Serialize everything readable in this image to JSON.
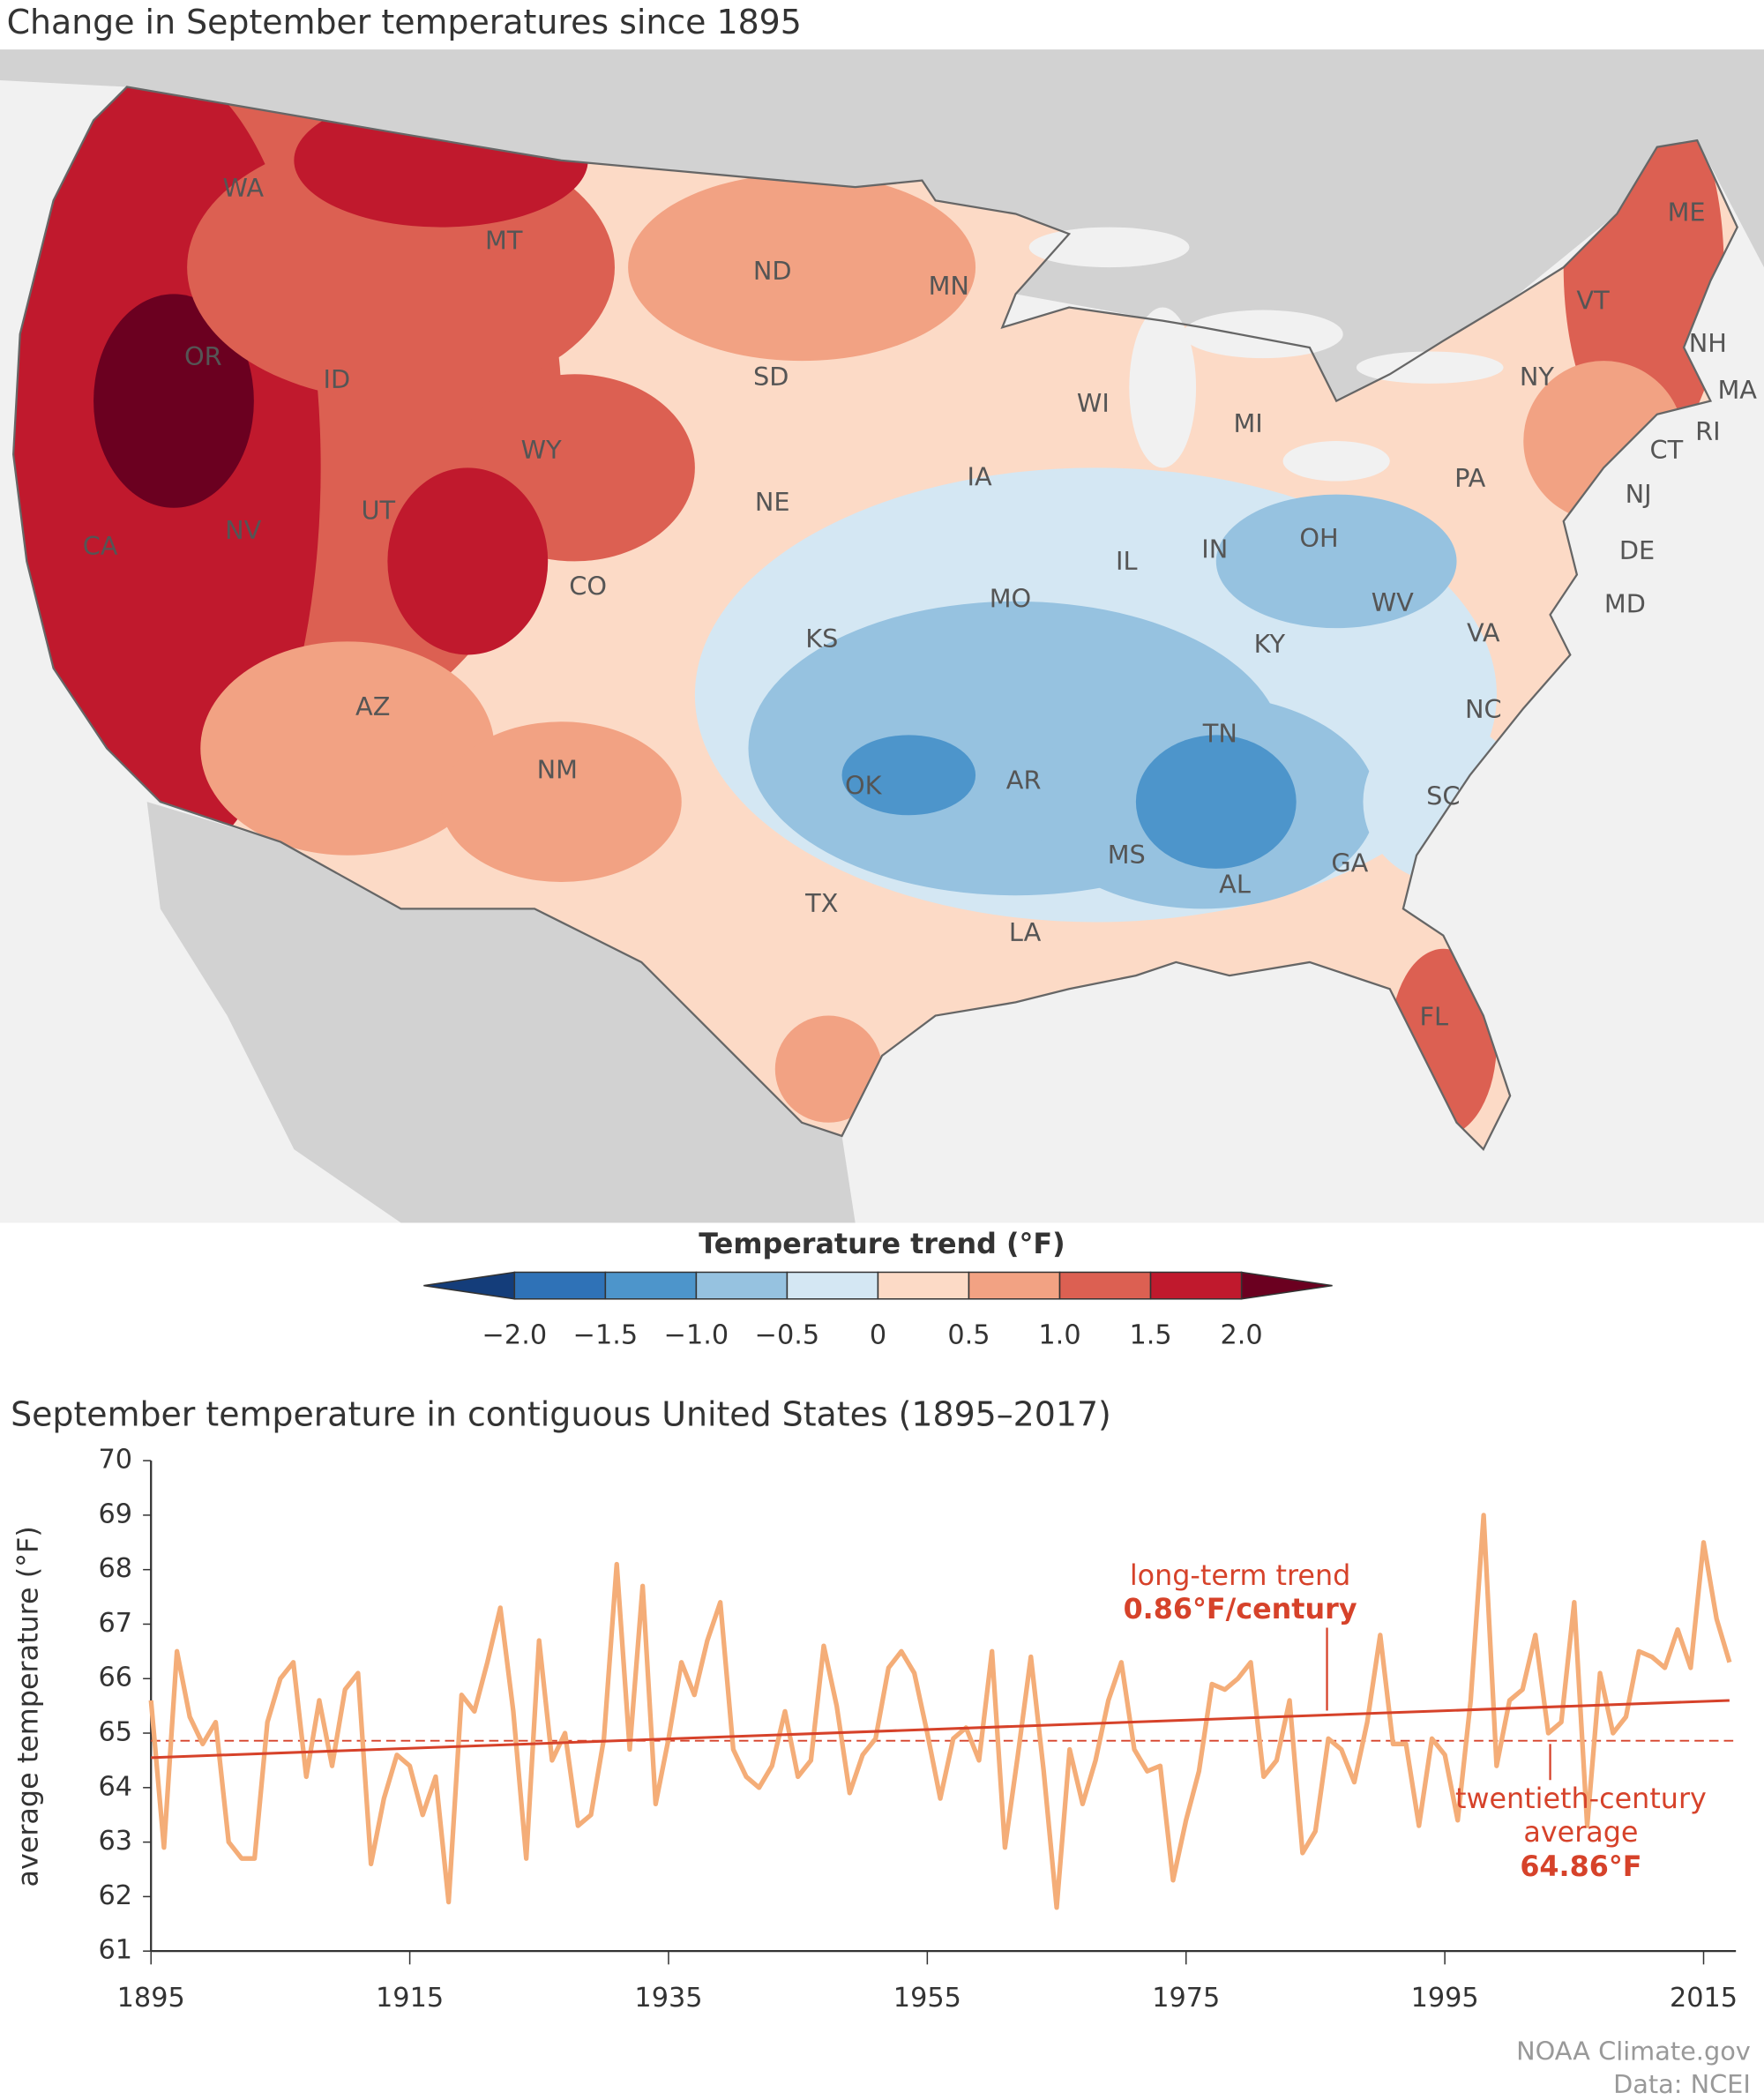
{
  "map": {
    "title": "Change in September temperatures since 1895",
    "state_labels": [
      "WA",
      "MT",
      "ND",
      "MN",
      "ME",
      "VT",
      "NH",
      "OR",
      "ID",
      "SD",
      "WY",
      "WI",
      "MI",
      "NY",
      "MA",
      "RI",
      "CT",
      "NJ",
      "PA",
      "NE",
      "IA",
      "NV",
      "UT",
      "CA",
      "CO",
      "IL",
      "IN",
      "OH",
      "DE",
      "MD",
      "WV",
      "VA",
      "MO",
      "KS",
      "KY",
      "AZ",
      "NM",
      "NC",
      "TN",
      "OK",
      "AR",
      "SC",
      "MS",
      "AL",
      "GA",
      "TX",
      "LA",
      "FL"
    ]
  },
  "colorbar": {
    "title": "Temperature trend (°F)",
    "ticks": [
      {
        "value": -2,
        "label": "−2.0"
      },
      {
        "value": -1.5,
        "label": "−1.5"
      },
      {
        "value": -1,
        "label": "−1.0"
      },
      {
        "value": -0.5,
        "label": "−0.5"
      },
      0,
      0.5,
      {
        "value": 1,
        "label": "1.0"
      },
      1.5,
      {
        "value": 2,
        "label": "2.0"
      }
    ],
    "colors": [
      "#143d7a",
      "#2f72b7",
      "#4d95cb",
      "#96c2e0",
      "#d4e7f3",
      "#fcdac6",
      "#f2a283",
      "#dc6052",
      "#c0192d",
      "#6b0020"
    ]
  },
  "chart_data": {
    "type": "line",
    "title": "September temperature in contiguous United States (1895–2017)",
    "y_label": "average temperature (°F)",
    "x": [
      1895,
      1896,
      1897,
      1898,
      1899,
      1900,
      1901,
      1902,
      1903,
      1904,
      1905,
      1906,
      1907,
      1908,
      1909,
      1910,
      1911,
      1912,
      1913,
      1914,
      1915,
      1916,
      1917,
      1918,
      1919,
      1920,
      1921,
      1922,
      1923,
      1924,
      1925,
      1926,
      1927,
      1928,
      1929,
      1930,
      1931,
      1932,
      1933,
      1934,
      1935,
      1936,
      1937,
      1938,
      1939,
      1940,
      1941,
      1942,
      1943,
      1944,
      1945,
      1946,
      1947,
      1948,
      1949,
      1950,
      1951,
      1952,
      1953,
      1954,
      1955,
      1956,
      1957,
      1958,
      1959,
      1960,
      1961,
      1962,
      1963,
      1964,
      1965,
      1966,
      1967,
      1968,
      1969,
      1970,
      1971,
      1972,
      1973,
      1974,
      1975,
      1976,
      1977,
      1978,
      1979,
      1980,
      1981,
      1982,
      1983,
      1984,
      1985,
      1986,
      1987,
      1988,
      1989,
      1990,
      1991,
      1992,
      1993,
      1994,
      1995,
      1996,
      1997,
      1998,
      1999,
      2000,
      2001,
      2002,
      2003,
      2004,
      2005,
      2006,
      2007,
      2008,
      2009,
      2010,
      2011,
      2012,
      2013,
      2014,
      2015,
      2016,
      2017
    ],
    "series": [
      {
        "color": "#f4ad78",
        "values": [
          65.6,
          62.9,
          66.5,
          65.3,
          64.8,
          65.2,
          63.0,
          62.7,
          62.7,
          65.2,
          66.0,
          66.3,
          64.2,
          65.6,
          64.4,
          65.8,
          66.1,
          62.6,
          63.8,
          64.6,
          64.4,
          63.5,
          64.2,
          61.9,
          65.7,
          65.4,
          66.3,
          67.3,
          65.4,
          62.7,
          66.7,
          64.5,
          65.0,
          63.3,
          63.5,
          64.9,
          68.1,
          64.7,
          67.7,
          63.7,
          64.9,
          66.3,
          65.7,
          66.7,
          67.4,
          64.7,
          64.2,
          64.0,
          64.4,
          65.4,
          64.2,
          64.5,
          66.6,
          65.5,
          63.9,
          64.6,
          64.9,
          66.2,
          66.5,
          66.1,
          65.0,
          63.8,
          64.9,
          65.1,
          64.5,
          66.5,
          62.9,
          64.6,
          66.4,
          64.3,
          61.8,
          64.7,
          63.7,
          64.5,
          65.6,
          66.3,
          64.7,
          64.3,
          64.4,
          62.3,
          63.4,
          64.3,
          65.9,
          65.8,
          66.0,
          66.3,
          64.2,
          64.5,
          65.6,
          62.8,
          63.2,
          64.9,
          64.7,
          64.1,
          65.2,
          66.8,
          64.8,
          64.8,
          63.3,
          64.9,
          64.6,
          63.4,
          65.6,
          69.0,
          64.4,
          65.6,
          65.8,
          66.8,
          65.0,
          65.2,
          67.4,
          63.3,
          66.1,
          65.0,
          65.3,
          66.5,
          66.4,
          66.2,
          66.9,
          66.2,
          68.5,
          67.1,
          66.3
        ]
      }
    ],
    "trend": {
      "color": "#d6422a",
      "x": [
        1895,
        2017
      ],
      "values": [
        64.55,
        65.6
      ],
      "label": "long-term trend",
      "rate": "0.86°F/century"
    },
    "average": {
      "value": 64.86,
      "label": "64.86°F",
      "title": [
        "twentieth-century",
        "average"
      ]
    },
    "xlim": [
      1895,
      2017.5
    ],
    "xticks": [
      1895,
      1915,
      1935,
      1955,
      1975,
      1995,
      2015
    ],
    "ylim": [
      61,
      70
    ],
    "yticks": [
      61,
      62,
      63,
      64,
      65,
      66,
      67,
      68,
      69,
      70
    ]
  },
  "credits": [
    "NOAA Climate.gov",
    "Data: NCEI"
  ]
}
